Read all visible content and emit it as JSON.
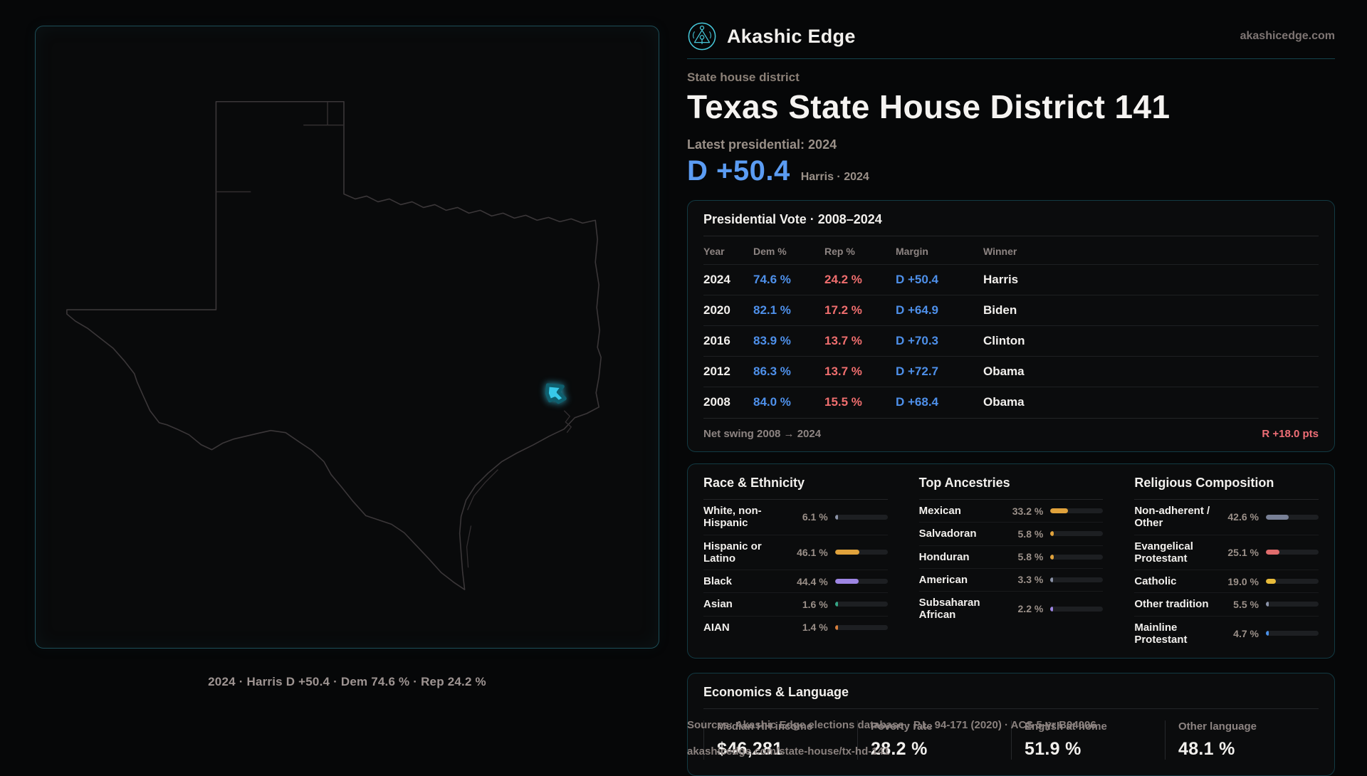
{
  "brand": {
    "name": "Akashic Edge",
    "domain": "akashicedge.com"
  },
  "header": {
    "eyebrow": "State house district",
    "title": "Texas State House District 141",
    "latest_label": "Latest presidential: 2024",
    "margin": "D +50.4",
    "margin_sub": "Harris · 2024"
  },
  "map": {
    "caption": "2024 · Harris D +50.4 · Dem 74.6 % · Rep 24.2 %",
    "highlight_color": "#38c9e9"
  },
  "presidential": {
    "title": "Presidential Vote · 2008–2024",
    "columns": [
      "Year",
      "Dem %",
      "Rep %",
      "Margin",
      "Winner"
    ],
    "rows": [
      {
        "year": "2024",
        "dem": "74.6 %",
        "rep": "24.2 %",
        "margin": "D +50.4",
        "winner": "Harris"
      },
      {
        "year": "2020",
        "dem": "82.1 %",
        "rep": "17.2 %",
        "margin": "D +64.9",
        "winner": "Biden"
      },
      {
        "year": "2016",
        "dem": "83.9 %",
        "rep": "13.7 %",
        "margin": "D +70.3",
        "winner": "Clinton"
      },
      {
        "year": "2012",
        "dem": "86.3 %",
        "rep": "13.7 %",
        "margin": "D +72.7",
        "winner": "Obama"
      },
      {
        "year": "2008",
        "dem": "84.0 %",
        "rep": "15.5 %",
        "margin": "D +68.4",
        "winner": "Obama"
      }
    ],
    "net_swing_label": "Net swing 2008 → 2024",
    "net_swing_value": "R +18.0 pts"
  },
  "demographics": {
    "race": {
      "title": "Race & Ethnicity",
      "items": [
        {
          "label": "White, non-Hispanic",
          "value": "6.1 %",
          "pct": 6.1,
          "color": "#8b93a8"
        },
        {
          "label": "Hispanic or Latino",
          "value": "46.1 %",
          "pct": 46.1,
          "color": "#e0a23c"
        },
        {
          "label": "Black",
          "value": "44.4 %",
          "pct": 44.4,
          "color": "#9d85e3"
        },
        {
          "label": "Asian",
          "value": "1.6 %",
          "pct": 1.6,
          "color": "#35a585"
        },
        {
          "label": "AIAN",
          "value": "1.4 %",
          "pct": 1.4,
          "color": "#d87f3c"
        }
      ]
    },
    "ancestries": {
      "title": "Top Ancestries",
      "items": [
        {
          "label": "Mexican",
          "value": "33.2 %",
          "pct": 33.2,
          "color": "#e0a23c"
        },
        {
          "label": "Salvadoran",
          "value": "5.8 %",
          "pct": 5.8,
          "color": "#e0a23c"
        },
        {
          "label": "Honduran",
          "value": "5.8 %",
          "pct": 5.8,
          "color": "#e0a23c"
        },
        {
          "label": "American",
          "value": "3.3 %",
          "pct": 3.3,
          "color": "#8b93a8"
        },
        {
          "label": "Subsaharan African",
          "value": "2.2 %",
          "pct": 2.2,
          "color": "#9d85e3"
        }
      ]
    },
    "religion": {
      "title": "Religious Composition",
      "items": [
        {
          "label": "Non-adherent / Other",
          "value": "42.6 %",
          "pct": 42.6,
          "color": "#788096"
        },
        {
          "label": "Evangelical Protestant",
          "value": "25.1 %",
          "pct": 25.1,
          "color": "#e06c6c"
        },
        {
          "label": "Catholic",
          "value": "19.0 %",
          "pct": 19.0,
          "color": "#e8bb3a"
        },
        {
          "label": "Other tradition",
          "value": "5.5 %",
          "pct": 5.5,
          "color": "#8b93a8"
        },
        {
          "label": "Mainline Protestant",
          "value": "4.7 %",
          "pct": 4.7,
          "color": "#4a90e8"
        }
      ]
    }
  },
  "economics": {
    "title": "Economics & Language",
    "stats": [
      {
        "label": "Median HH income",
        "value": "$46,281"
      },
      {
        "label": "Poverty rate",
        "value": "28.2 %"
      },
      {
        "label": "English at home",
        "value": "51.9 %"
      },
      {
        "label": "Other language",
        "value": "48.1 %"
      }
    ]
  },
  "footer": {
    "sources": "Sources: Akashic Edge elections database · P.L. 94-171 (2020) · ACS 5-yr B04006",
    "permalink": "akashicedge.com/state-house/tx-hd-141"
  },
  "colors": {
    "dem": "#5b9cf3",
    "rep": "#ef6e76",
    "accent": "#38c9e9"
  }
}
